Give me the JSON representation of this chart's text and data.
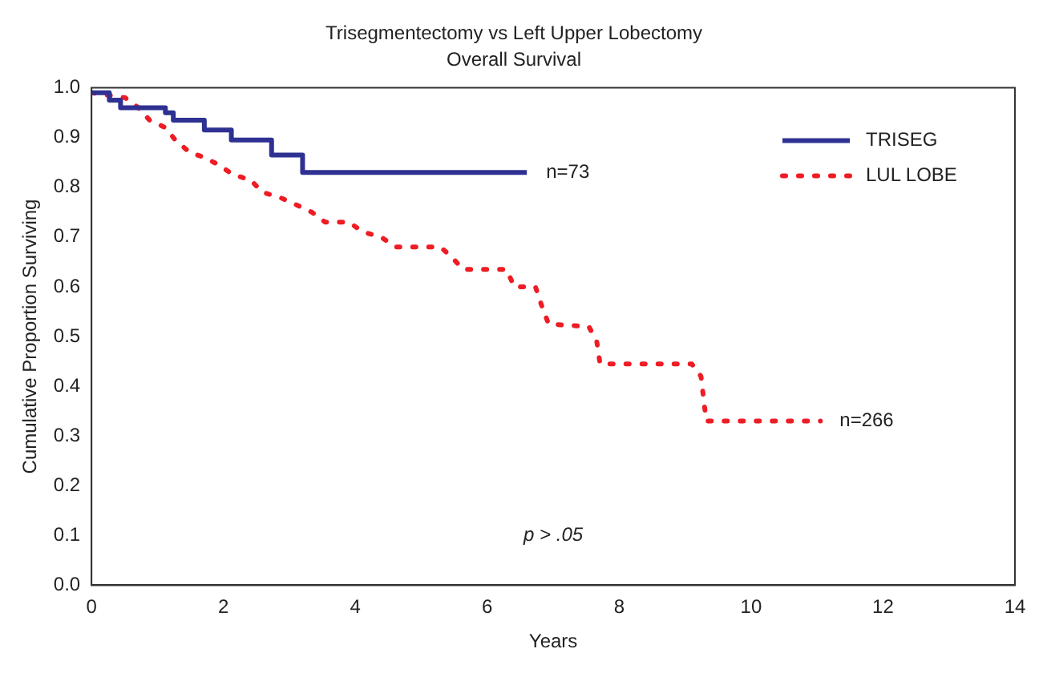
{
  "chart_data": {
    "type": "step",
    "title": "Trisegmentectomy vs Left Upper Lobectomy",
    "subtitle": "Overall Survival",
    "xlabel": "Years",
    "ylabel": "Cumulative Proportion Surviving",
    "xlim": [
      0,
      14
    ],
    "xticks": [
      0,
      2,
      4,
      6,
      8,
      10,
      12,
      14
    ],
    "ylim": [
      0,
      1
    ],
    "yticks": [
      {
        "value": 0,
        "label": "0.0"
      },
      {
        "value": 0.1,
        "label": "0.1"
      },
      {
        "value": 0.2,
        "label": "0.2"
      },
      {
        "value": 0.3,
        "label": "0.3"
      },
      {
        "value": 0.4,
        "label": "0.4"
      },
      {
        "value": 0.5,
        "label": "0.5"
      },
      {
        "value": 0.6,
        "label": "0.6"
      },
      {
        "value": 0.7,
        "label": "0.7"
      },
      {
        "value": 0.8,
        "label": "0.8"
      },
      {
        "value": 0.9,
        "label": "0.9"
      },
      {
        "value": 1,
        "label": "1.0"
      }
    ],
    "grid": false,
    "legend": "top right",
    "marker": "none",
    "series": [
      {
        "name": "TRISEG",
        "color": "#2e3192",
        "line_style": "solid",
        "x": [
          0,
          0.27,
          0.44,
          1.12,
          1.24,
          1.71,
          2.12,
          2.73,
          3.2,
          6.6
        ],
        "values": [
          0.99,
          0.975,
          0.96,
          0.95,
          0.935,
          0.915,
          0.895,
          0.865,
          0.83,
          0.83
        ]
      },
      {
        "name": "LUL LOBE",
        "color": "#ee1c24",
        "type": "line",
        "line_style": "dotted",
        "x": [
          0,
          0.51,
          0.71,
          0.88,
          1.12,
          1.27,
          1.49,
          1.71,
          1.93,
          2.15,
          2.41,
          2.59,
          2.85,
          3.1,
          3.34,
          3.54,
          3.9,
          4.12,
          4.39,
          4.61,
          5.29,
          5.46,
          5.63,
          6.29,
          6.41,
          6.73,
          6.83,
          6.93,
          7.54,
          7.66,
          7.71,
          9.1,
          9.24,
          9.32,
          11.05
        ],
        "values": [
          0.99,
          0.98,
          0.96,
          0.935,
          0.92,
          0.895,
          0.87,
          0.86,
          0.845,
          0.825,
          0.815,
          0.79,
          0.78,
          0.765,
          0.75,
          0.73,
          0.73,
          0.71,
          0.7,
          0.68,
          0.68,
          0.66,
          0.635,
          0.635,
          0.6,
          0.6,
          0.56,
          0.525,
          0.52,
          0.49,
          0.445,
          0.445,
          0.42,
          0.33,
          0.33
        ]
      }
    ],
    "annotations": [
      {
        "text": "n=73",
        "x": 6.6,
        "y": 0.83
      },
      {
        "text": "n=266",
        "x": 11.05,
        "y": 0.33
      },
      "p > .05"
    ]
  }
}
